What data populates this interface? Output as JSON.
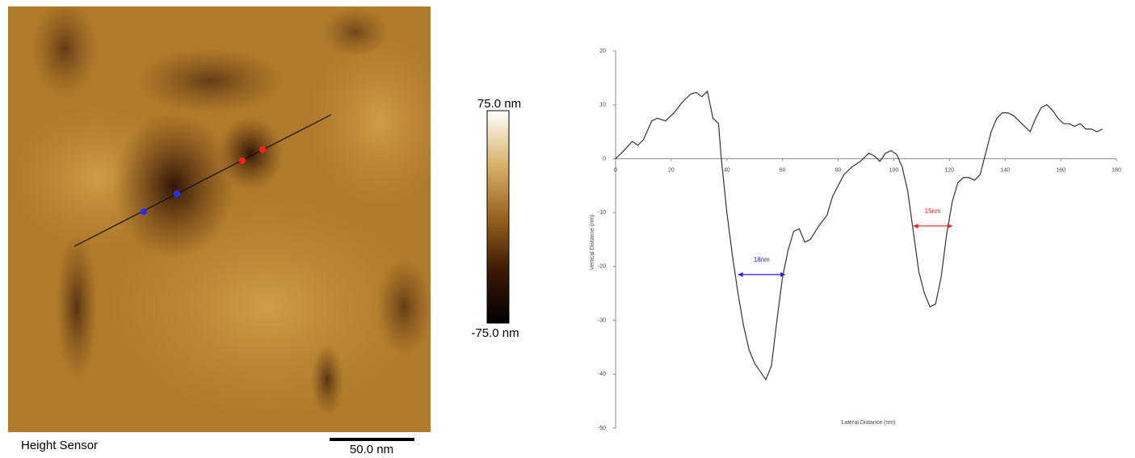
{
  "afm_image": {
    "label": "Height Sensor",
    "scale_bar": "50.0 nm",
    "colorbar_max": "75.0 nm",
    "colorbar_min": "-75.0 nm"
  },
  "chart_data": {
    "type": "line",
    "xlabel": "Lateral Distance (nm)",
    "ylabel": "Vertical Distance (nm)",
    "xlim": [
      0,
      180
    ],
    "xticks": [
      0,
      20,
      40,
      60,
      80,
      100,
      120,
      140,
      160,
      180
    ],
    "ylim": [
      -50,
      20
    ],
    "yticks": [
      -50,
      -40,
      -30,
      -20,
      -10,
      0,
      10,
      20
    ],
    "x": [
      0,
      3,
      6,
      8,
      10,
      13,
      15,
      18,
      21,
      24,
      27,
      29,
      31,
      33,
      35,
      37,
      38,
      40,
      42,
      44,
      46,
      48,
      50,
      52,
      54,
      56,
      58,
      60,
      62,
      64,
      66,
      68,
      70,
      73,
      76,
      78,
      80,
      82,
      85,
      88,
      91,
      93,
      95,
      97,
      99,
      101,
      103,
      105,
      107,
      109,
      111,
      113,
      115,
      117,
      119,
      121,
      123,
      125,
      127,
      129,
      131,
      133,
      135,
      137,
      139,
      141,
      143,
      145,
      147,
      149,
      151,
      153,
      155,
      157,
      159,
      161,
      163,
      165,
      167,
      169,
      171,
      173,
      175
    ],
    "series": [
      {
        "color": "#333333",
        "values": [
          0,
          1.5,
          3.2,
          2.5,
          3.5,
          7,
          7.5,
          7,
          8.5,
          10.5,
          12,
          12.3,
          11.5,
          12.5,
          7.5,
          6.5,
          0,
          -10,
          -18,
          -25,
          -31,
          -35.5,
          -38,
          -39.5,
          -41,
          -38.5,
          -30,
          -22,
          -17,
          -13.5,
          -13,
          -15.5,
          -15,
          -12.5,
          -10.5,
          -7,
          -5,
          -3,
          -1.5,
          -0.5,
          1,
          0.5,
          -0.5,
          1,
          1.5,
          0.8,
          -1.5,
          -6,
          -13.5,
          -21,
          -25,
          -27.5,
          -27,
          -22,
          -14,
          -8,
          -4.5,
          -3.5,
          -3.5,
          -4,
          -3,
          1,
          5,
          7.5,
          8.5,
          8.5,
          8,
          7,
          6,
          5,
          7.5,
          9.5,
          10,
          9,
          7.5,
          6.5,
          6.5,
          6,
          6.5,
          5.5,
          5.5,
          5,
          5.5
        ]
      }
    ],
    "annotations": [
      {
        "text": "18nm",
        "color": "#2222dd",
        "x": [
          44,
          61
        ],
        "y": -21.5
      },
      {
        "text": "15nm",
        "color": "#e02020",
        "x": [
          107,
          121
        ],
        "y": -12.5
      }
    ]
  }
}
